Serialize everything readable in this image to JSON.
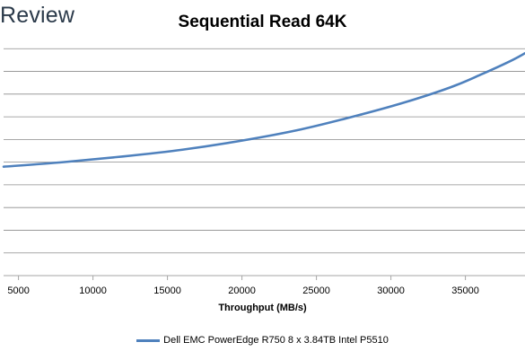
{
  "branding": {
    "text": "Review"
  },
  "colors": {
    "series": "#4f81bd",
    "grid": "#8c8c8c",
    "axis": "#a6a6a6"
  },
  "chart_data": {
    "type": "line",
    "title": "Sequential Read 64K",
    "xlabel": "Throughput (MB/s)",
    "ylabel": "",
    "xlim": [
      4000,
      39000
    ],
    "ylim": [
      0,
      11
    ],
    "xticks": [
      5000,
      10000,
      15000,
      20000,
      25000,
      30000,
      35000
    ],
    "grid": true,
    "legend_position": "bottom",
    "series": [
      {
        "name": "Dell EMC PowerEdge R750 8 x 3.84TB Intel P5510",
        "x": [
          4000,
          8000,
          12000,
          16000,
          20000,
          24000,
          28000,
          31000,
          34000,
          36000,
          38000,
          39000
        ],
        "y": [
          4.8,
          5.0,
          5.25,
          5.55,
          5.95,
          6.45,
          7.1,
          7.65,
          8.3,
          8.85,
          9.45,
          9.8
        ]
      }
    ]
  }
}
